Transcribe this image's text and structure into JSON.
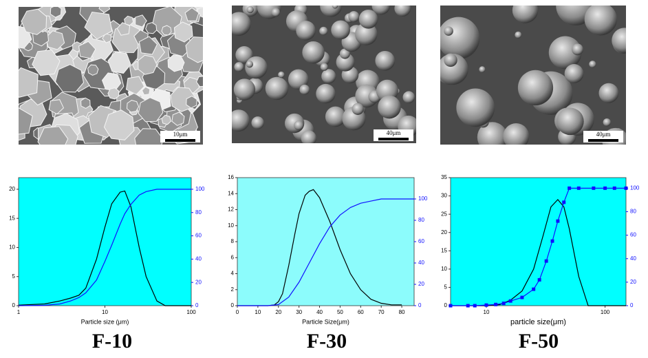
{
  "captions": [
    "F-10",
    "F-30",
    "F-50"
  ],
  "images": [
    {
      "scale_bar": "10μm"
    },
    {
      "scale_bar": "40μm"
    },
    {
      "scale_bar": "40μm"
    }
  ],
  "chart_data": [
    {
      "type": "line",
      "xlabel": "Particle size (μm)",
      "xscale": "log",
      "plot_color": "#00ffff",
      "xlim": [
        1,
        100
      ],
      "xticks": [
        1,
        10,
        100
      ],
      "ylim": [
        0,
        22
      ],
      "yticks": [
        0,
        5,
        10,
        15,
        20
      ],
      "y2lim": [
        0,
        110
      ],
      "y2ticks": [
        0,
        20,
        40,
        60,
        80,
        100
      ],
      "series": [
        {
          "color": "#000000",
          "x": [
            1,
            2,
            3,
            4,
            5,
            6,
            8,
            10,
            12,
            15,
            17,
            20,
            25,
            30,
            40,
            50,
            100
          ],
          "values": [
            0.1,
            0.3,
            0.8,
            1.3,
            1.8,
            3,
            8,
            13.5,
            17.5,
            19.5,
            19.7,
            17,
            10,
            5,
            0.8,
            0,
            0
          ]
        },
        {
          "color": "#1010ff",
          "axis": "y2",
          "x": [
            1,
            2,
            3,
            4,
            5,
            6,
            8,
            10,
            12,
            15,
            17,
            20,
            25,
            30,
            40,
            50,
            70,
            100
          ],
          "values": [
            0,
            0.3,
            1.5,
            4,
            7,
            11,
            22,
            38,
            52,
            70,
            79,
            87,
            95,
            98,
            100,
            100,
            100,
            100
          ]
        }
      ]
    },
    {
      "type": "line",
      "xlabel": "Particle Size(μm)",
      "plot_color": "#8cfcfc",
      "xlim": [
        0,
        86
      ],
      "xticks": [
        0,
        10,
        20,
        30,
        40,
        50,
        60,
        70,
        80
      ],
      "ylim": [
        0,
        16
      ],
      "yticks": [
        0,
        2,
        4,
        6,
        8,
        10,
        12,
        14,
        16
      ],
      "y2lim": [
        0,
        120
      ],
      "y2ticks": [
        0,
        20,
        40,
        60,
        80,
        100
      ],
      "series": [
        {
          "color": "#000000",
          "x": [
            0,
            10,
            15,
            18,
            20,
            22,
            25,
            28,
            30,
            33,
            35,
            37,
            40,
            45,
            50,
            55,
            60,
            65,
            70,
            75,
            80
          ],
          "values": [
            0,
            0,
            0,
            0.1,
            0.5,
            1.5,
            5,
            9,
            11.5,
            13.8,
            14.3,
            14.5,
            13.5,
            10.5,
            7,
            4,
            2,
            0.8,
            0.3,
            0.1,
            0.1
          ]
        },
        {
          "color": "#1010ff",
          "axis": "y2",
          "x": [
            0,
            15,
            20,
            25,
            30,
            35,
            40,
            45,
            50,
            55,
            60,
            65,
            70,
            80,
            86
          ],
          "values": [
            0,
            0,
            1,
            8,
            22,
            40,
            58,
            74,
            85,
            92,
            96,
            98,
            100,
            100,
            100
          ]
        }
      ]
    },
    {
      "type": "line",
      "xlabel": "particle size(μm)",
      "xscale": "log",
      "plot_color": "#00ffff",
      "xlim": [
        5,
        150
      ],
      "xticks": [
        10,
        100
      ],
      "ylim": [
        0,
        35
      ],
      "yticks": [
        0,
        5,
        10,
        15,
        20,
        25,
        30,
        35
      ],
      "y2lim": [
        0,
        109
      ],
      "y2ticks": [
        0,
        20,
        40,
        60,
        80,
        100
      ],
      "series": [
        {
          "color": "#000000",
          "x": [
            5,
            10,
            13,
            16,
            20,
            25,
            30,
            35,
            40,
            45,
            50,
            60,
            72,
            150
          ],
          "values": [
            0,
            0,
            0.3,
            1.5,
            4,
            10,
            19,
            27,
            29,
            27,
            21,
            8,
            0,
            0
          ]
        },
        {
          "color": "#1010ff",
          "axis": "y2",
          "markers": true,
          "x": [
            5,
            7,
            8,
            10,
            12,
            14,
            16,
            20,
            25,
            28,
            32,
            36,
            40,
            45,
            50,
            60,
            80,
            100,
            120,
            150
          ],
          "values": [
            0,
            0,
            0,
            0.5,
            1,
            2,
            4,
            7,
            14,
            22,
            38,
            55,
            72,
            88,
            100,
            100,
            100,
            100,
            100,
            100
          ]
        }
      ]
    }
  ]
}
